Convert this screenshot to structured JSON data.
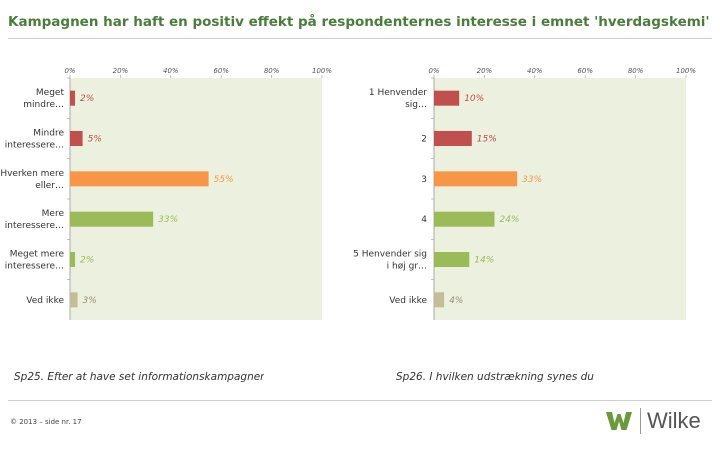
{
  "title": "Kampagnen har haft en positiv effekt på respondenternes interesse i emnet 'hverdagskemi'",
  "chart_data": [
    {
      "type": "bar",
      "orientation": "horizontal",
      "categories": [
        "Meget mindre…",
        "Mindre interessere…",
        "Hverken mere eller…",
        "Mere interessere…",
        "Meget mere interessere…",
        "Ved ikke"
      ],
      "values": [
        2,
        5,
        55,
        33,
        2,
        3
      ],
      "data_labels": [
        "2%",
        "5%",
        "55%",
        "33%",
        "2%",
        "3%"
      ],
      "colors": [
        "#c0504d",
        "#c0504d",
        "#f79646",
        "#9bbb59",
        "#9bbb59",
        "#c4bd97"
      ],
      "label_colors": [
        "#c0504d",
        "#c0504d",
        "#f79646",
        "#9bbb59",
        "#9bbb59",
        "#9a8f6a"
      ],
      "xlim": [
        0,
        100
      ],
      "xticks": [
        "0%",
        "20%",
        "40%",
        "60%",
        "80%",
        "100%"
      ],
      "caption": "Sp25. Efter at have set informationskampagnen for"
    },
    {
      "type": "bar",
      "orientation": "horizontal",
      "categories": [
        "1 Henvender sig…",
        "2",
        "3",
        "4",
        "5 Henvender sig i høj gr…",
        "Ved ikke"
      ],
      "values": [
        10,
        15,
        33,
        24,
        14,
        4
      ],
      "data_labels": [
        "10%",
        "15%",
        "33%",
        "24%",
        "14%",
        "4%"
      ],
      "colors": [
        "#c0504d",
        "#c0504d",
        "#f79646",
        "#9bbb59",
        "#9bbb59",
        "#c4bd97"
      ],
      "label_colors": [
        "#c0504d",
        "#c0504d",
        "#f79646",
        "#9bbb59",
        "#9bbb59",
        "#9a8f6a"
      ],
      "xlim": [
        0,
        100
      ],
      "xticks": [
        "0%",
        "20%",
        "40%",
        "60%",
        "80%",
        "100%"
      ],
      "caption": "Sp26. I hvilken udstrækning synes du"
    }
  ],
  "footer": "© 2013 – side nr. 17",
  "logo_text": "Wilke",
  "logo_color": "#6a9a3a"
}
